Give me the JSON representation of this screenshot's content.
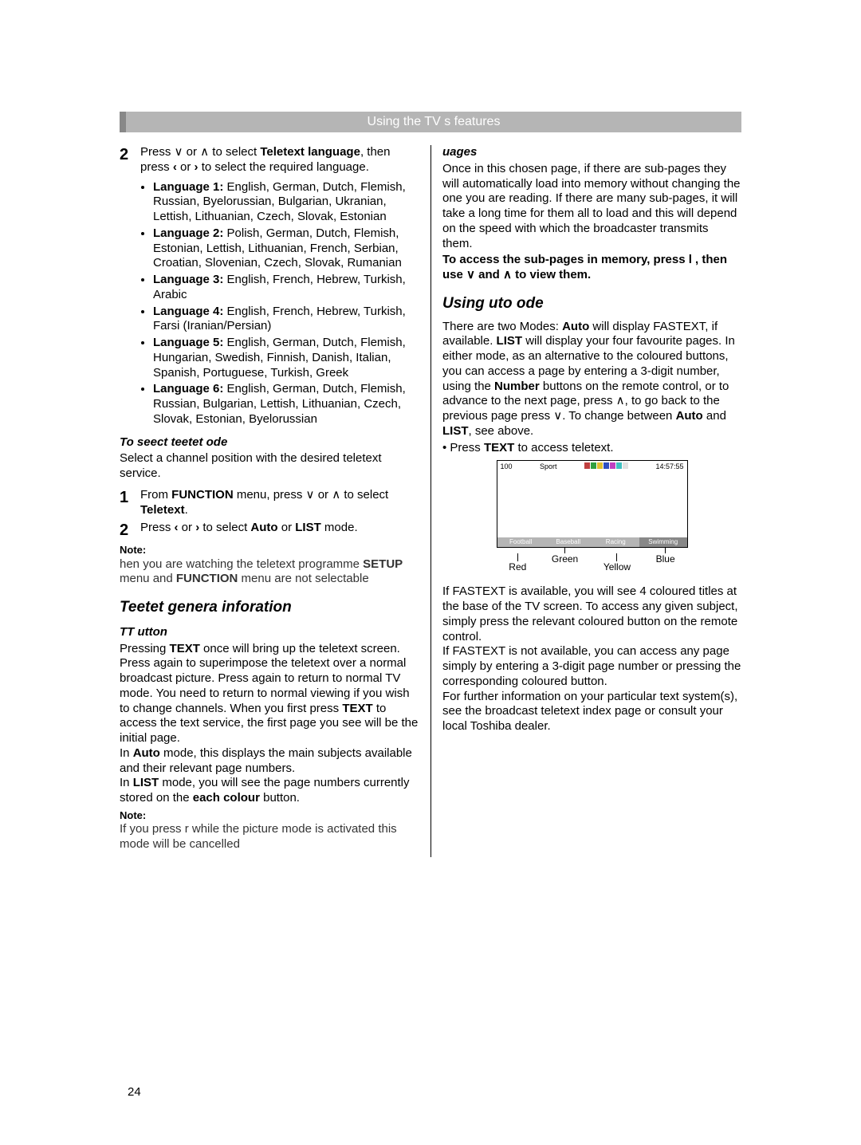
{
  "header": "Using the TV s features",
  "page_number": "24",
  "left": {
    "step2": "Press ∨ or ∧ to select <b>Teletext language</b>, then press <b>‹</b> or <b>›</b> to select the required language.",
    "languages": [
      "<b>Language 1:</b> English, German, Dutch, Flemish, Russian, Byelorussian, Bulgarian, Ukranian, Lettish, Lithuanian, Czech, Slovak, Estonian",
      "<b>Language 2:</b> Polish, German, Dutch, Flemish, Estonian, Lettish, Lithuanian, French, Serbian, Croatian, Slovenian, Czech, Slovak, Rumanian",
      "<b>Language 3:</b> English, French, Hebrew, Turkish, Arabic",
      "<b>Language 4:</b> English, French, Hebrew, Turkish, Farsi (Iranian/Persian)",
      "<b>Language 5:</b> English, German, Dutch, Flemish, Hungarian, Swedish, Finnish, Danish, Italian, Spanish, Portuguese, Turkish, Greek",
      "<b>Language 6:</b> English, German, Dutch, Flemish, Russian, Bulgarian, Lettish, Lithuanian, Czech, Slovak, Estonian, Byelorussian"
    ],
    "select_mode_head": "To seect teetet ode",
    "select_mode_txt": "Select a channel position with the desired teletext service.",
    "sm_step1": "From <b>FUNCTION</b> menu, press ∨ or ∧ to select <b>Teletext</b>.",
    "sm_step2": "Press <b>‹</b> or <b>›</b> to select <b>Auto</b> or <b>LIST</b> mode.",
    "note1": "hen you are watching the teletext programme <b>SETUP</b>   menu and <b>FUNCTION</b>   menu are not selectable",
    "gen_head": "Teetet genera inforation",
    "tt_head": "TT utton",
    "tt_body": "Pressing <b>TEXT</b> once will bring up the teletext screen. Press again to superimpose the teletext over a normal broadcast picture. Press again to return to normal TV mode. You need to return to normal viewing if you wish to change channels. When you first press <b>TEXT</b> to access the text service, the first page you see will be the initial page.\nIn <b>Auto</b> mode, this displays the main subjects available and their relevant page numbers.\nIn <b>LIST</b> mode, you will see the page numbers currently stored on the <b>each colour</b> button.",
    "note2": "If you press r    while the picture mode is activated this mode will be cancelled"
  },
  "right": {
    "sub_head": "uages",
    "sub_body": "Once in this chosen page, if there are sub-pages they will automatically load into memory without changing the one you are reading. If there are many sub-pages, it will take a long time for them all to load and this will depend on the speed with which the broadcaster transmits them.",
    "sub_bold": "To access the sub-pages in memory, press l    , then use ∨ and ∧ to view them.",
    "auto_head": "Using uto ode",
    "auto_body": "There are two Modes: <b>Auto</b> will display FASTEXT, if available. <b>LIST</b> will display your four favourite pages. In either mode, as an alternative to the coloured buttons, you can access a page by entering a 3-digit number, using the <b>Number</b> buttons on the remote control, or to advance to the next page, press ∧, to go back to the previous page press ∨. To change between <b>Auto</b> and <b>LIST</b>, see above.",
    "auto_bullet": "• Press <b>TEXT</b> to access teletext.",
    "screen": {
      "page": "100",
      "label": "Sport",
      "time": "14:57:55",
      "bar_colors": [
        "#c04040",
        "#30a040",
        "#e0c030",
        "#3050c0",
        "#c040c0",
        "#40c0c0",
        "#e0e0e0"
      ],
      "tabs": [
        "Football",
        "Baseball",
        "Racing",
        "Swimming"
      ],
      "colors": [
        "Red",
        "Green",
        "Yellow",
        "Blue"
      ]
    },
    "fastext": "If FASTEXT is available, you will see 4 coloured titles at the base of the TV screen. To access any given subject, simply press the relevant coloured button on the remote control.\nIf FASTEXT is not available, you can access any page simply by entering a 3-digit page number or pressing the corresponding coloured button.\nFor further information on your particular text system(s), see the broadcast teletext index page or consult your local Toshiba dealer."
  }
}
